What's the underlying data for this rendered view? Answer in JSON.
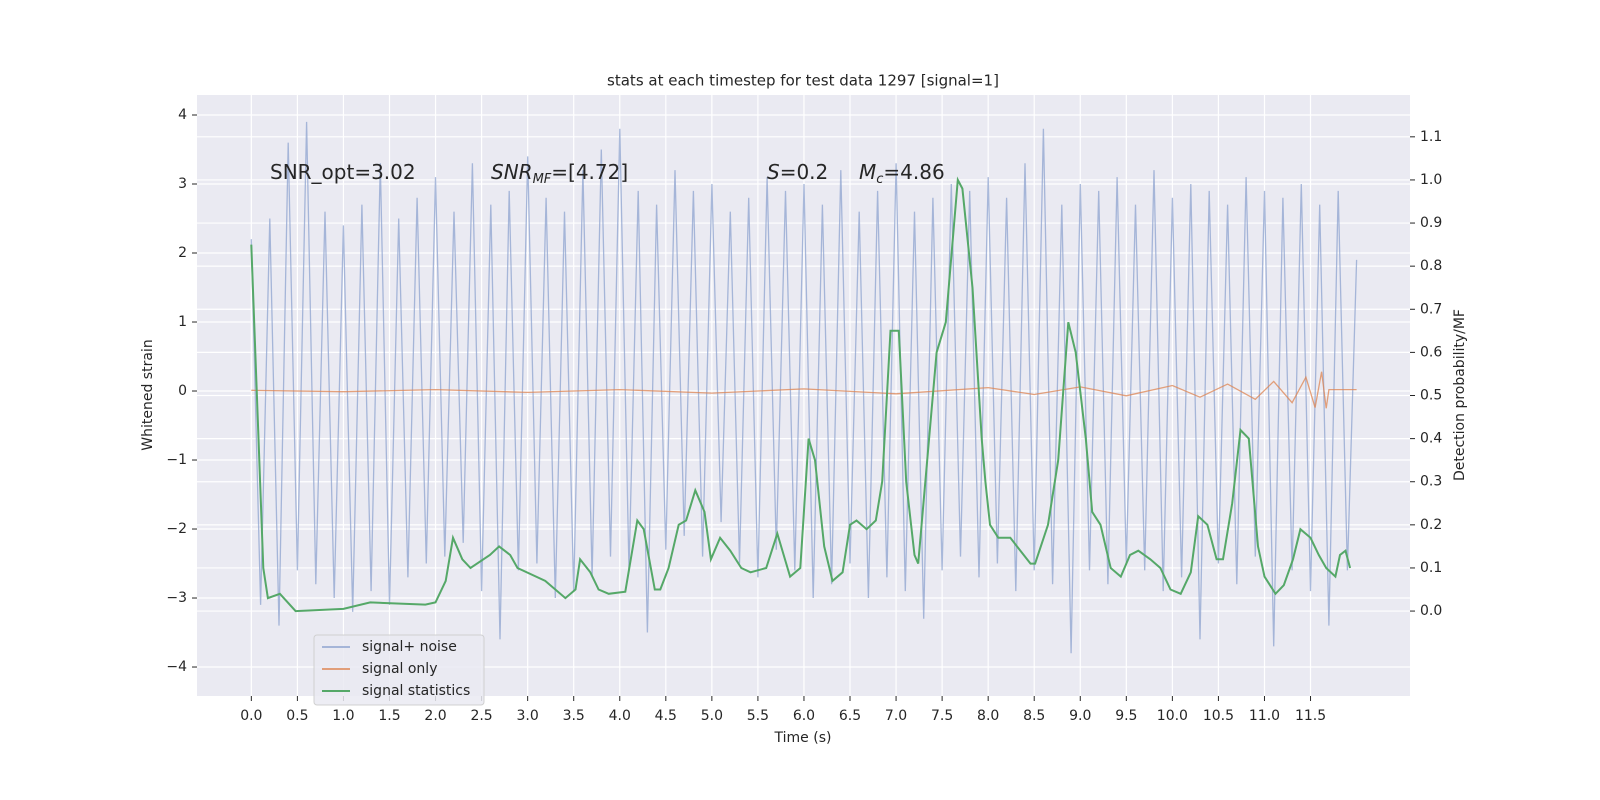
{
  "chart_data": {
    "type": "line",
    "title": "stats at each timestep for test data 1297 [signal=1]",
    "xlabel": "Time (s)",
    "ylabel": "Whitened strain",
    "y2label": "Detection probability/MF",
    "annotations": [
      {
        "main": "SNR_opt=3.02"
      },
      {
        "main": "SNR",
        "sub": "MF",
        "rest": "=[4.72]"
      },
      {
        "main": "S",
        "rest": "=0.2"
      },
      {
        "main": "M",
        "sub": "c",
        "rest": "=4.86"
      }
    ],
    "xlim": [
      -0.59,
      12.58
    ],
    "ylim": [
      -4.42,
      4.29
    ],
    "y2lim": [
      -0.197,
      1.197
    ],
    "xticks": [
      {
        "value": 0,
        "label": "0.0"
      },
      {
        "value": 0.5,
        "label": "0.5"
      },
      {
        "value": 1,
        "label": "1.0"
      },
      {
        "value": 1.5,
        "label": "1.5"
      },
      {
        "value": 2,
        "label": "2.0"
      },
      {
        "value": 2.5,
        "label": "2.5"
      },
      {
        "value": 3,
        "label": "3.0"
      },
      {
        "value": 3.5,
        "label": "3.5"
      },
      {
        "value": 4,
        "label": "4.0"
      },
      {
        "value": 4.5,
        "label": "4.5"
      },
      {
        "value": 5,
        "label": "5.0"
      },
      {
        "value": 5.5,
        "label": "5.5"
      },
      {
        "value": 6,
        "label": "6.0"
      },
      {
        "value": 6.5,
        "label": "6.5"
      },
      {
        "value": 7,
        "label": "7.0"
      },
      {
        "value": 7.5,
        "label": "7.5"
      },
      {
        "value": 8,
        "label": "8.0"
      },
      {
        "value": 8.5,
        "label": "8.5"
      },
      {
        "value": 9,
        "label": "9.0"
      },
      {
        "value": 9.5,
        "label": "9.5"
      },
      {
        "value": 10,
        "label": "10.0"
      },
      {
        "value": 10.5,
        "label": "10.5"
      },
      {
        "value": 11,
        "label": "11.0"
      },
      {
        "value": 11.5,
        "label": "11.5"
      }
    ],
    "yticks": [
      {
        "value": -4,
        "label": "−4"
      },
      {
        "value": -3,
        "label": "−3"
      },
      {
        "value": -2,
        "label": "−2"
      },
      {
        "value": -1,
        "label": "−1"
      },
      0,
      1,
      2,
      3,
      4
    ],
    "y2ticks": [
      {
        "value": 0,
        "label": "0.0"
      },
      {
        "value": 0.1,
        "label": "0.1"
      },
      {
        "value": 0.2,
        "label": "0.2"
      },
      {
        "value": 0.3,
        "label": "0.3"
      },
      {
        "value": 0.4,
        "label": "0.4"
      },
      {
        "value": 0.5,
        "label": "0.5"
      },
      {
        "value": 0.6,
        "label": "0.6"
      },
      {
        "value": 0.7,
        "label": "0.7"
      },
      {
        "value": 0.8,
        "label": "0.8"
      },
      {
        "value": 0.9,
        "label": "0.9"
      },
      {
        "value": 1,
        "label": "1.0"
      },
      {
        "value": 1.1,
        "label": "1.1"
      }
    ],
    "grid": true,
    "legend": "lower left",
    "series": [
      {
        "name": "signal+ noise",
        "color": "#8da3cf",
        "x": [
          0,
          0.1,
          0.2,
          0.3,
          0.4,
          0.5,
          0.6,
          0.7,
          0.8,
          0.9,
          1,
          1.1,
          1.2,
          1.3,
          1.4,
          1.5,
          1.6,
          1.7,
          1.8,
          1.9,
          2,
          2.1,
          2.2,
          2.3,
          2.4,
          2.5,
          2.6,
          2.7,
          2.8,
          2.9,
          3,
          3.1,
          3.2,
          3.3,
          3.4,
          3.5,
          3.6,
          3.7,
          3.8,
          3.9,
          4,
          4.1,
          4.2,
          4.3,
          4.4,
          4.5,
          4.6,
          4.7,
          4.8,
          4.9,
          5,
          5.1,
          5.2,
          5.3,
          5.4,
          5.5,
          5.6,
          5.7,
          5.8,
          5.9,
          6,
          6.1,
          6.2,
          6.3,
          6.4,
          6.5,
          6.6,
          6.7,
          6.8,
          6.9,
          7,
          7.1,
          7.2,
          7.3,
          7.4,
          7.5,
          7.6,
          7.7,
          7.8,
          7.9,
          8,
          8.1,
          8.2,
          8.3,
          8.4,
          8.5,
          8.6,
          8.7,
          8.8,
          8.9,
          9,
          9.1,
          9.2,
          9.3,
          9.4,
          9.5,
          9.6,
          9.7,
          9.8,
          9.9,
          10,
          10.1,
          10.2,
          10.3,
          10.4,
          10.5,
          10.6,
          10.7,
          10.8,
          10.9,
          11,
          11.1,
          11.2,
          11.3,
          11.4,
          11.5,
          11.6,
          11.7,
          11.8,
          11.9,
          12
        ],
        "values": [
          2.2,
          -3.1,
          2.5,
          -3.4,
          3.6,
          -2.6,
          3.9,
          -2.8,
          2.6,
          -3.0,
          2.4,
          -3.2,
          2.7,
          -2.9,
          3.3,
          -3.1,
          2.5,
          -2.7,
          2.8,
          -2.5,
          3.1,
          -2.4,
          2.6,
          -2.2,
          3.3,
          -2.9,
          2.7,
          -3.6,
          2.9,
          -2.6,
          3.4,
          -2.5,
          2.8,
          -3.0,
          2.6,
          -2.9,
          3.2,
          -2.7,
          3.5,
          -2.4,
          3.8,
          -2.6,
          2.9,
          -3.5,
          2.7,
          -2.3,
          3.2,
          -2.1,
          2.9,
          -2.4,
          3.0,
          -1.9,
          2.6,
          -2.5,
          2.8,
          -2.7,
          3.1,
          -2.3,
          2.9,
          -2.6,
          3.0,
          -3.0,
          2.7,
          -2.8,
          3.2,
          -2.5,
          2.6,
          -3.0,
          2.9,
          -2.7,
          3.3,
          -2.9,
          2.6,
          -3.3,
          2.8,
          -2.6,
          3.0,
          -2.4,
          2.9,
          -2.7,
          3.1,
          -2.5,
          2.8,
          -2.9,
          3.3,
          -2.6,
          3.8,
          -2.8,
          2.7,
          -3.8,
          3.0,
          -2.6,
          2.9,
          -2.8,
          3.1,
          -2.5,
          2.7,
          -2.6,
          3.2,
          -2.9,
          2.8,
          -2.7,
          3.0,
          -3.6,
          2.9,
          -2.5,
          2.7,
          -2.8,
          3.1,
          -2.4,
          2.9,
          -3.7,
          2.8,
          -2.6,
          3.0,
          -2.9,
          2.7,
          -3.4,
          2.9,
          -2.6,
          1.9
        ]
      },
      {
        "name": "signal only",
        "color": "#dd8452",
        "x": [
          0,
          1,
          2,
          3,
          4,
          5,
          6,
          7,
          8,
          8.5,
          9,
          9.5,
          10,
          10.3,
          10.6,
          10.9,
          11.1,
          11.3,
          11.45,
          11.55,
          11.62,
          11.67,
          11.7,
          12
        ],
        "values": [
          0.01,
          -0.01,
          0.02,
          -0.02,
          0.02,
          -0.03,
          0.03,
          -0.04,
          0.05,
          -0.05,
          0.06,
          -0.07,
          0.08,
          -0.09,
          0.1,
          -0.12,
          0.14,
          -0.17,
          0.2,
          -0.24,
          0.28,
          -0.25,
          0.02,
          0.02
        ]
      },
      {
        "name": "signal statistics",
        "color": "#55a868",
        "axis": "y2",
        "x": [
          0,
          0.13,
          0.18,
          0.31,
          0.48,
          1.0,
          1.29,
          1.89,
          2.0,
          2.11,
          2.19,
          2.29,
          2.38,
          2.59,
          2.69,
          2.81,
          2.89,
          3.19,
          3.41,
          3.52,
          3.57,
          3.68,
          3.77,
          3.88,
          4.06,
          4.19,
          4.26,
          4.38,
          4.44,
          4.53,
          4.64,
          4.72,
          4.82,
          4.92,
          4.99,
          5.09,
          5.2,
          5.32,
          5.42,
          5.59,
          5.71,
          5.85,
          5.96,
          6.05,
          6.12,
          6.22,
          6.31,
          6.42,
          6.5,
          6.57,
          6.68,
          6.78,
          6.85,
          6.94,
          7.03,
          7.11,
          7.2,
          7.24,
          7.44,
          7.54,
          7.67,
          7.72,
          7.83,
          7.93,
          7.97,
          8.02,
          8.11,
          8.24,
          8.35,
          8.46,
          8.51,
          8.65,
          8.76,
          8.87,
          8.95,
          9.06,
          9.13,
          9.22,
          9.33,
          9.44,
          9.54,
          9.63,
          9.76,
          9.87,
          9.98,
          10.09,
          10.2,
          10.28,
          10.38,
          10.48,
          10.55,
          10.65,
          10.74,
          10.83,
          10.93,
          11.0,
          11.12,
          11.21,
          11.31,
          11.39,
          11.5,
          11.59,
          11.67,
          11.77,
          11.82,
          11.88,
          11.93
        ],
        "values": [
          0.85,
          0.1,
          0.03,
          0.04,
          0.0,
          0.005,
          0.02,
          0.015,
          0.02,
          0.07,
          0.17,
          0.12,
          0.1,
          0.13,
          0.15,
          0.13,
          0.1,
          0.07,
          0.03,
          0.05,
          0.12,
          0.09,
          0.05,
          0.04,
          0.045,
          0.21,
          0.19,
          0.05,
          0.05,
          0.1,
          0.2,
          0.21,
          0.28,
          0.23,
          0.12,
          0.17,
          0.14,
          0.1,
          0.09,
          0.1,
          0.18,
          0.08,
          0.1,
          0.4,
          0.35,
          0.15,
          0.07,
          0.09,
          0.2,
          0.21,
          0.19,
          0.21,
          0.3,
          0.65,
          0.65,
          0.3,
          0.13,
          0.11,
          0.6,
          0.67,
          1.0,
          0.98,
          0.75,
          0.4,
          0.3,
          0.2,
          0.17,
          0.17,
          0.14,
          0.11,
          0.11,
          0.2,
          0.35,
          0.67,
          0.6,
          0.4,
          0.23,
          0.2,
          0.1,
          0.08,
          0.13,
          0.14,
          0.12,
          0.1,
          0.05,
          0.04,
          0.09,
          0.22,
          0.2,
          0.12,
          0.12,
          0.25,
          0.42,
          0.4,
          0.15,
          0.08,
          0.04,
          0.06,
          0.12,
          0.19,
          0.17,
          0.13,
          0.1,
          0.08,
          0.13,
          0.14,
          0.1
        ]
      }
    ]
  }
}
